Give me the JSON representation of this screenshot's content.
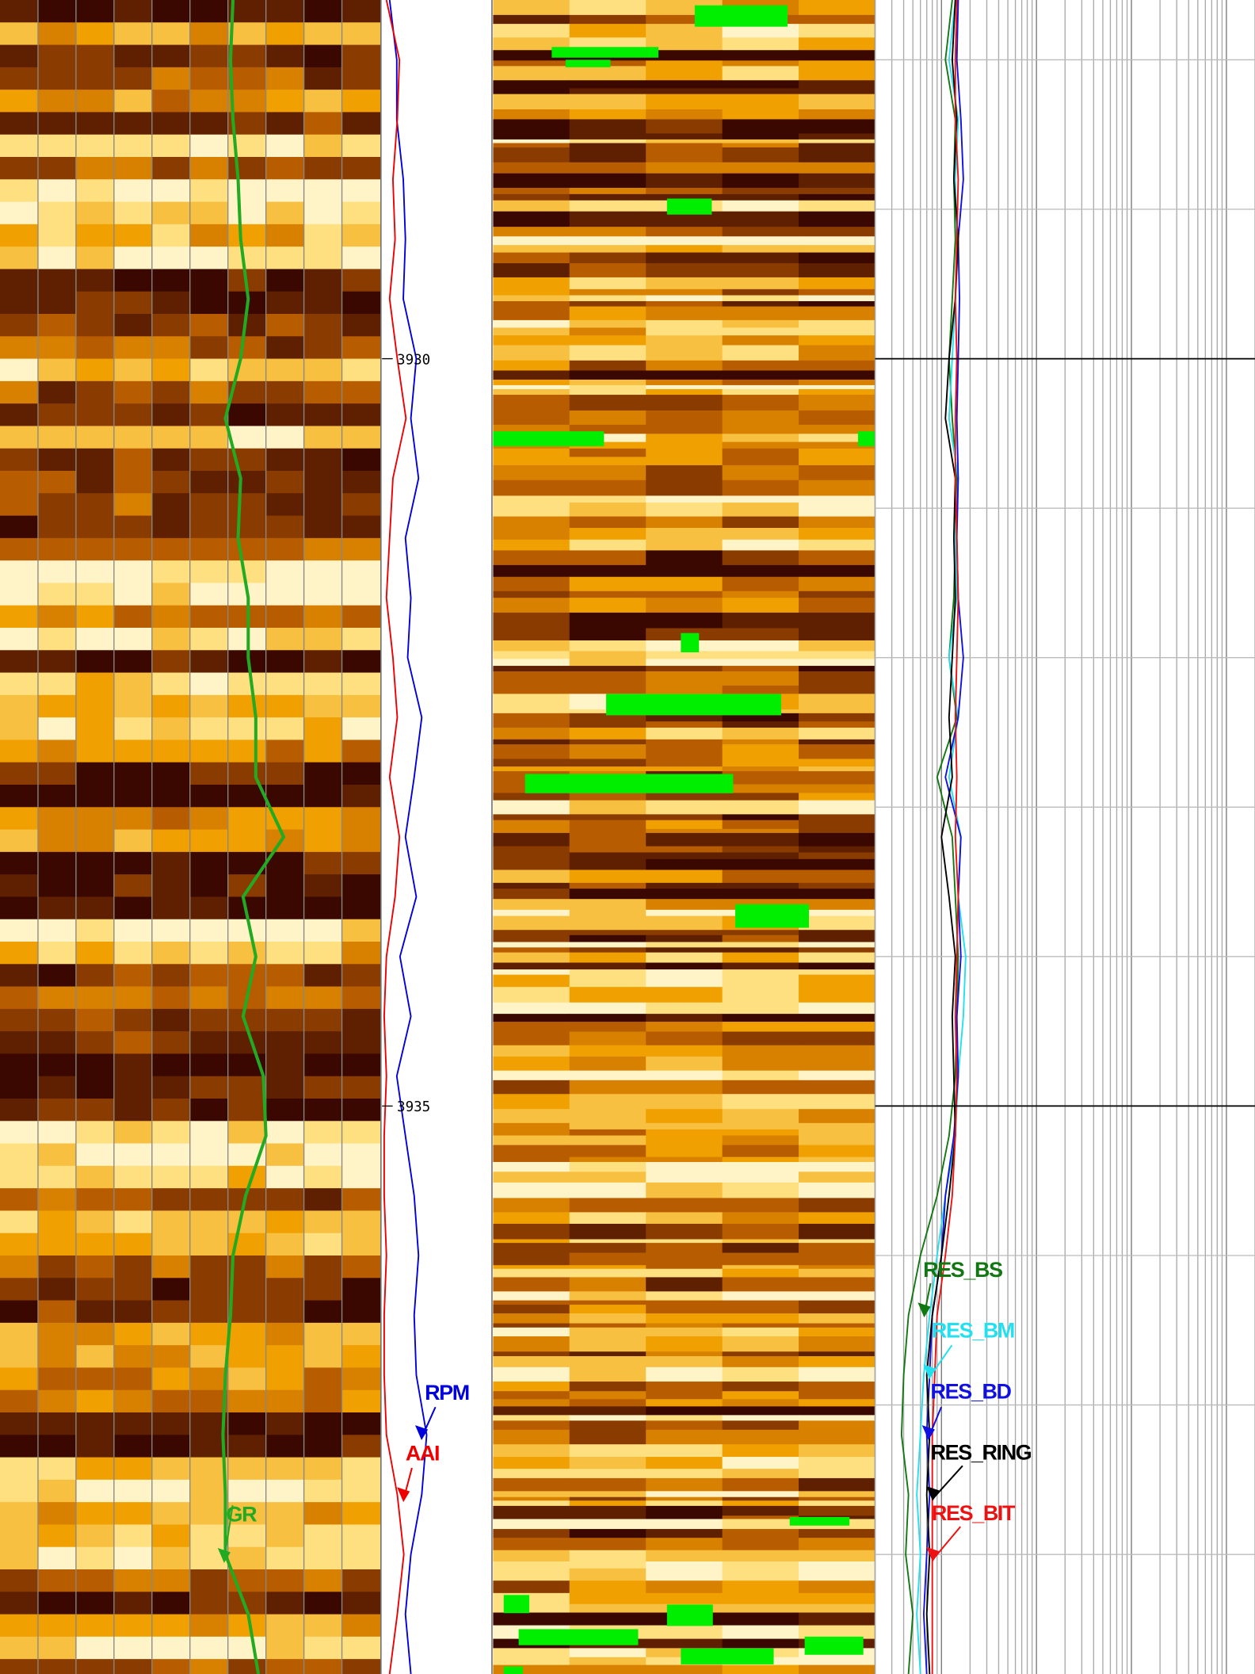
{
  "chart_data": {
    "type": "well-log",
    "ylim": [
      3927.6,
      3938.8
    ],
    "yticks": [
      3930,
      3935
    ],
    "depth": [
      3927.6,
      3928.0,
      3928.4,
      3928.8,
      3929.2,
      3929.6,
      3930.0,
      3930.4,
      3930.8,
      3931.2,
      3931.6,
      3932.0,
      3932.4,
      3932.8,
      3933.2,
      3933.6,
      3934.0,
      3934.4,
      3934.8,
      3935.2,
      3935.6,
      3936.0,
      3936.4,
      3936.8,
      3937.2,
      3937.6,
      3938.0,
      3938.4,
      3938.8
    ],
    "tracks": [
      {
        "series": [
          {
            "name": "GR",
            "color": "#22aa22",
            "xlim": [
              0,
              150
            ],
            "values": [
              92,
              91,
              92,
              94,
              95,
              98,
              95,
              89,
              95,
              94,
              98,
              98,
              101,
              101,
              112,
              96,
              101,
              96,
              104,
              105,
              97,
              92,
              91,
              89,
              88,
              89,
              89,
              98,
              102
            ]
          }
        ]
      },
      {
        "series": [
          {
            "name": "RPM",
            "color": "#0000dd",
            "xlim": [
              0,
              200
            ],
            "values": [
              14,
              27,
              27,
              39,
              43,
              39,
              63,
              53,
              67,
              43,
              53,
              47,
              73,
              59,
              43,
              63,
              33,
              53,
              27,
              43,
              59,
              67,
              59,
              63,
              82,
              73,
              53,
              43,
              53
            ]
          },
          {
            "name": "AAI",
            "color": "#ee0000",
            "xlim": [
              0,
              10
            ],
            "values": [
              0.4,
              1.6,
              1.4,
              1.0,
              1.2,
              0.7,
              1.4,
              2.2,
              1.0,
              0.7,
              0.4,
              1.0,
              1.4,
              0.7,
              1.6,
              1.2,
              0.4,
              0.2,
              0.4,
              0.2,
              0.2,
              0.4,
              0.2,
              0.2,
              0.4,
              1.4,
              2.0,
              1.4,
              0.7
            ]
          }
        ]
      },
      {
        "log": true,
        "series": [
          {
            "name": "RES_BS",
            "color": "#117711",
            "xlim": [
              0.2,
              2000
            ],
            "values": [
              1.3,
              1.1,
              1.4,
              1.35,
              1.4,
              1.3,
              1.2,
              1.3,
              1.45,
              1.4,
              1.35,
              1.2,
              1.45,
              0.9,
              1.3,
              1.4,
              1.5,
              1.45,
              1.4,
              1.2,
              0.9,
              0.6,
              0.45,
              0.4,
              0.38,
              0.45,
              0.42,
              0.5,
              0.45
            ]
          },
          {
            "name": "RES_BM",
            "color": "#22e0f0",
            "xlim": [
              0.2,
              2000
            ],
            "values": [
              1.4,
              1.2,
              1.5,
              1.4,
              1.45,
              1.4,
              1.3,
              1.2,
              1.5,
              1.4,
              1.45,
              1.2,
              1.5,
              1.2,
              1.6,
              1.5,
              1.8,
              1.7,
              1.5,
              1.4,
              1.1,
              0.9,
              0.75,
              0.65,
              0.6,
              0.55,
              0.6,
              0.55,
              0.6
            ]
          },
          {
            "name": "RES_BD",
            "color": "#1010e0",
            "xlim": [
              0.2,
              2000
            ],
            "values": [
              1.5,
              1.45,
              1.6,
              1.7,
              1.5,
              1.55,
              1.5,
              1.45,
              1.5,
              1.45,
              1.5,
              1.7,
              1.5,
              1.1,
              1.6,
              1.5,
              1.6,
              1.45,
              1.5,
              1.35,
              1.1,
              1.0,
              0.8,
              0.75,
              0.7,
              0.75,
              0.7,
              0.65,
              0.7
            ]
          },
          {
            "name": "RES_RING",
            "color": "#000000",
            "xlim": [
              0.2,
              2000
            ],
            "values": [
              1.4,
              1.3,
              1.45,
              1.35,
              1.5,
              1.4,
              1.2,
              1.1,
              1.4,
              1.35,
              1.4,
              1.3,
              1.2,
              1.3,
              1.0,
              1.2,
              1.4,
              1.3,
              1.35,
              1.4,
              1.2,
              1.0,
              0.8,
              0.7,
              0.75,
              0.7,
              0.75,
              0.7,
              0.75
            ]
          },
          {
            "name": "RES_BIT",
            "color": "#ee1111",
            "xlim": [
              0.2,
              2000
            ],
            "values": [
              1.45,
              1.4,
              1.4,
              1.5,
              1.45,
              1.4,
              1.45,
              1.4,
              1.4,
              1.45,
              1.5,
              1.45,
              1.4,
              1.45,
              1.4,
              1.5,
              1.45,
              1.4,
              1.45,
              1.4,
              1.3,
              1.1,
              0.9,
              0.85,
              0.8,
              0.8,
              0.8,
              0.8,
              0.8
            ]
          }
        ]
      }
    ]
  }
}
